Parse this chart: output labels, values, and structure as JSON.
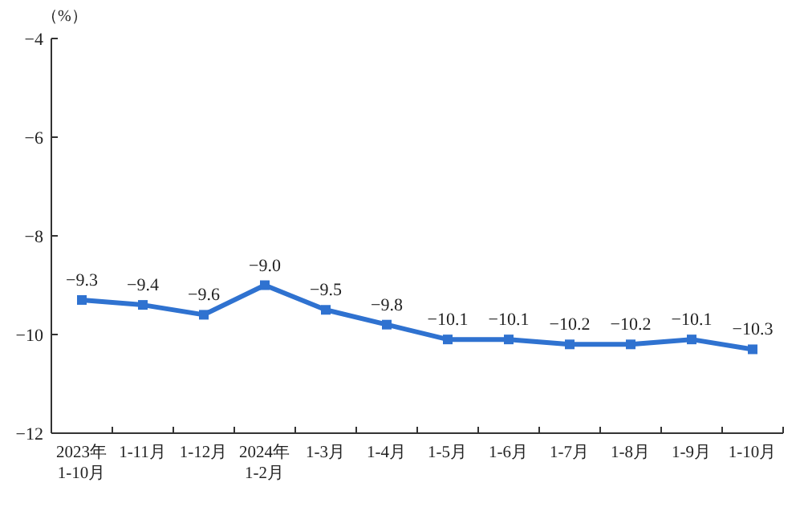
{
  "chart_data": {
    "type": "line",
    "ylabel": "（%）",
    "categories": [
      "2023年\n1-10月",
      "1-11月",
      "1-12月",
      "2024年\n1-2月",
      "1-3月",
      "1-4月",
      "1-5月",
      "1-6月",
      "1-7月",
      "1-8月",
      "1-9月",
      "1-10月"
    ],
    "series": [
      {
        "color": "#2f72d0",
        "values": [
          -9.3,
          -9.4,
          -9.6,
          -9.0,
          -9.5,
          -9.8,
          -10.1,
          -10.1,
          -10.2,
          -10.2,
          -10.1,
          -10.3
        ],
        "value_labels": [
          "−9.3",
          "−9.4",
          "−9.6",
          "−9.0",
          "−9.5",
          "−9.8",
          "−10.1",
          "−10.1",
          "−10.2",
          "−10.2",
          "−10.1",
          "−10.3"
        ]
      }
    ],
    "ylim": [
      -12,
      -4
    ],
    "yticks": [
      -4,
      -6,
      -8,
      -10,
      -12
    ],
    "marker": "square",
    "line_style": "solid"
  }
}
